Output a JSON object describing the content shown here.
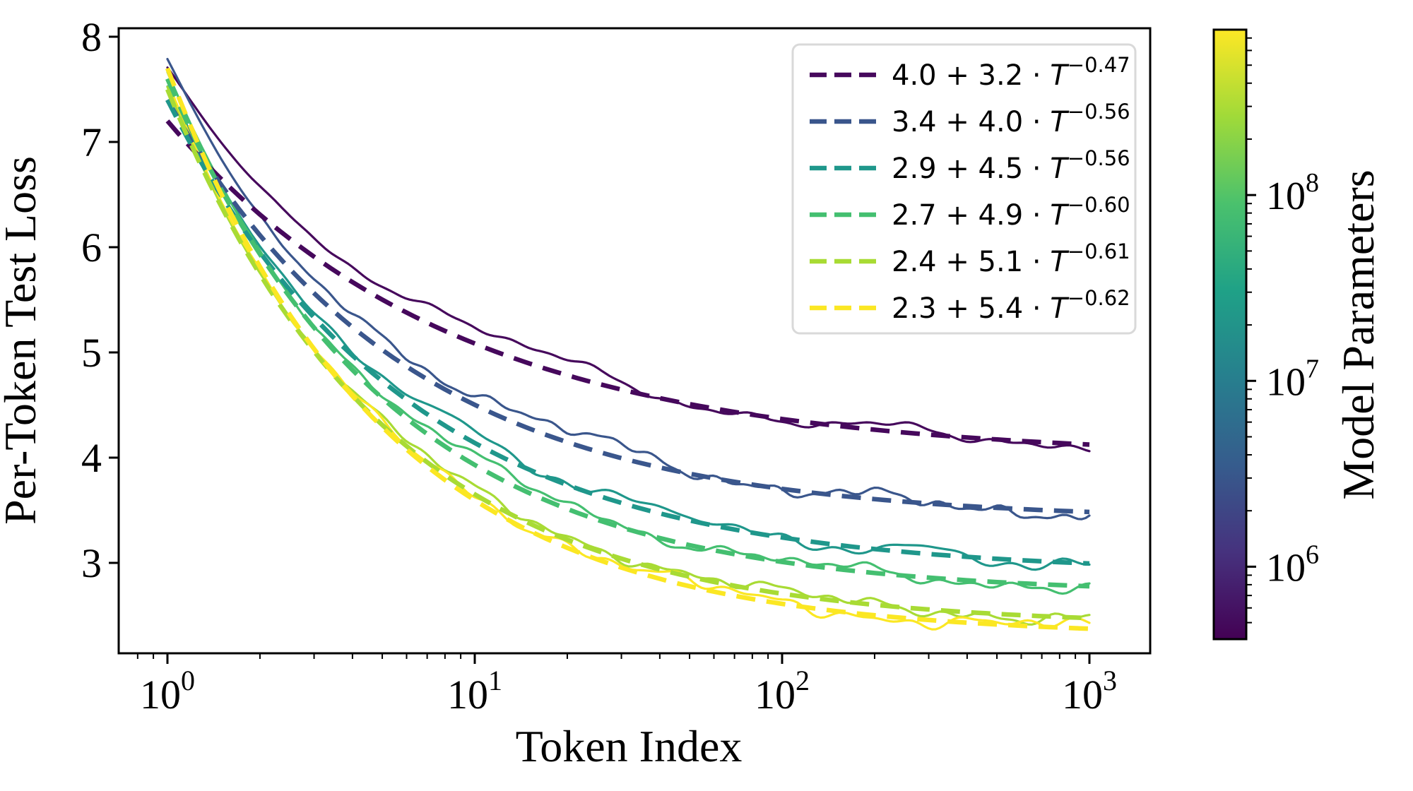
{
  "chart_data": {
    "type": "line",
    "title": "",
    "xlabel": "Token Index",
    "ylabel": "Per-Token Test Loss",
    "x_scale": "log",
    "y_scale": "linear",
    "xlim_log10": [
      -0.15,
      3.15
    ],
    "ylim": [
      2.14,
      8.08
    ],
    "grid": "off",
    "legend_position": "upper right",
    "x_ticks": [
      {
        "base": "10",
        "exp": "0",
        "log": 0
      },
      {
        "base": "10",
        "exp": "1",
        "log": 1
      },
      {
        "base": "10",
        "exp": "2",
        "log": 2
      },
      {
        "base": "10",
        "exp": "3",
        "log": 3
      }
    ],
    "y_ticks": [
      {
        "label": "8",
        "value": 8
      },
      {
        "label": "7",
        "value": 7
      },
      {
        "label": "6",
        "value": 6
      },
      {
        "label": "5",
        "value": 5
      },
      {
        "label": "4",
        "value": 4
      },
      {
        "label": "3",
        "value": 3
      }
    ],
    "sample_x": [
      1,
      2,
      3,
      5,
      10,
      20,
      50,
      100,
      200,
      500,
      1000
    ],
    "series": [
      {
        "label": "4.0 + 3.2 · T^−0.47",
        "label_prefix": "4.0 + 3.2 · ",
        "label_var": "T",
        "label_exp": "−0.47",
        "color": "#46085c",
        "fit": {
          "offset": 4.0,
          "coeff": 3.2,
          "exponent": -0.47
        },
        "fit_values": [
          7.2,
          6.31,
          5.91,
          5.5,
          5.08,
          4.78,
          4.51,
          4.37,
          4.27,
          4.17,
          4.12
        ],
        "solid": {
          "start_offset": 0.48,
          "bump_amp": 0.16,
          "bump_center": 0.85,
          "seed": 7
        }
      },
      {
        "label": "3.4 + 4.0 · T^−0.56",
        "label_prefix": "3.4 + 4.0 · ",
        "label_var": "T",
        "label_exp": "−0.56",
        "color": "#3a568c",
        "fit": {
          "offset": 3.4,
          "coeff": 4.0,
          "exponent": -0.56
        },
        "fit_values": [
          7.4,
          6.11,
          5.56,
          5.02,
          4.5,
          4.15,
          3.85,
          3.7,
          3.61,
          3.52,
          3.48
        ],
        "solid": {
          "start_offset": 0.38,
          "bump_amp": 0.12,
          "bump_center": 1.05,
          "seed": 13
        }
      },
      {
        "label": "2.9 + 4.5 · T^−0.56",
        "label_prefix": "2.9 + 4.5 · ",
        "label_var": "T",
        "label_exp": "−0.56",
        "color": "#1f978b",
        "fit": {
          "offset": 2.9,
          "coeff": 4.5,
          "exponent": -0.56
        },
        "fit_values": [
          7.4,
          5.95,
          5.33,
          4.73,
          4.14,
          3.74,
          3.4,
          3.24,
          3.13,
          3.04,
          2.99
        ],
        "solid": {
          "start_offset": 0.12,
          "bump_amp": 0.07,
          "bump_center": 1.0,
          "seed": 21
        }
      },
      {
        "label": "2.7 + 4.9 · T^−0.60",
        "label_prefix": "2.7 + 4.9 · ",
        "label_var": "T",
        "label_exp": "−0.60",
        "color": "#44bf70",
        "fit": {
          "offset": 2.7,
          "coeff": 4.9,
          "exponent": -0.6
        },
        "fit_values": [
          7.6,
          5.93,
          5.23,
          4.57,
          3.93,
          3.51,
          3.17,
          3.01,
          2.9,
          2.82,
          2.78
        ],
        "solid": {
          "start_offset": 0.06,
          "bump_amp": 0.06,
          "bump_center": 1.05,
          "seed": 5
        }
      },
      {
        "label": "2.4 + 5.1 · T^−0.61",
        "label_prefix": "2.4 + 5.1 · ",
        "label_var": "T",
        "label_exp": "−0.61",
        "color": "#a8db34",
        "fit": {
          "offset": 2.4,
          "coeff": 5.1,
          "exponent": -0.61
        },
        "fit_values": [
          7.5,
          5.74,
          5.01,
          4.31,
          3.65,
          3.22,
          2.87,
          2.71,
          2.6,
          2.52,
          2.48
        ],
        "solid": {
          "start_offset": 0.02,
          "bump_amp": 0.05,
          "bump_center": 1.1,
          "seed": 17
        }
      },
      {
        "label": "2.3 + 5.4 · T^−0.62",
        "label_prefix": "2.3 + 5.4 · ",
        "label_var": "T",
        "label_exp": "−0.62",
        "color": "#fbe723",
        "fit": {
          "offset": 2.3,
          "coeff": 5.4,
          "exponent": -0.62
        },
        "fit_values": [
          7.7,
          5.81,
          5.03,
          4.29,
          3.6,
          3.14,
          2.78,
          2.61,
          2.5,
          2.42,
          2.37
        ],
        "solid": {
          "start_offset": -0.12,
          "bump_amp": 0.05,
          "bump_center": 1.15,
          "seed": 29
        }
      }
    ],
    "colorbar": {
      "label": "Model Parameters",
      "scale": "log",
      "log_top": 8.89,
      "log_bottom": 5.61,
      "ticks": [
        {
          "base": "10",
          "exp": "8",
          "log": 8
        },
        {
          "base": "10",
          "exp": "7",
          "log": 7
        },
        {
          "base": "10",
          "exp": "6",
          "log": 6
        }
      ],
      "gradient_top_to_bottom": [
        "#fde725",
        "#a0da39",
        "#4ac16d",
        "#1fa187",
        "#277f8e",
        "#365c8d",
        "#46327e",
        "#440154"
      ]
    }
  }
}
